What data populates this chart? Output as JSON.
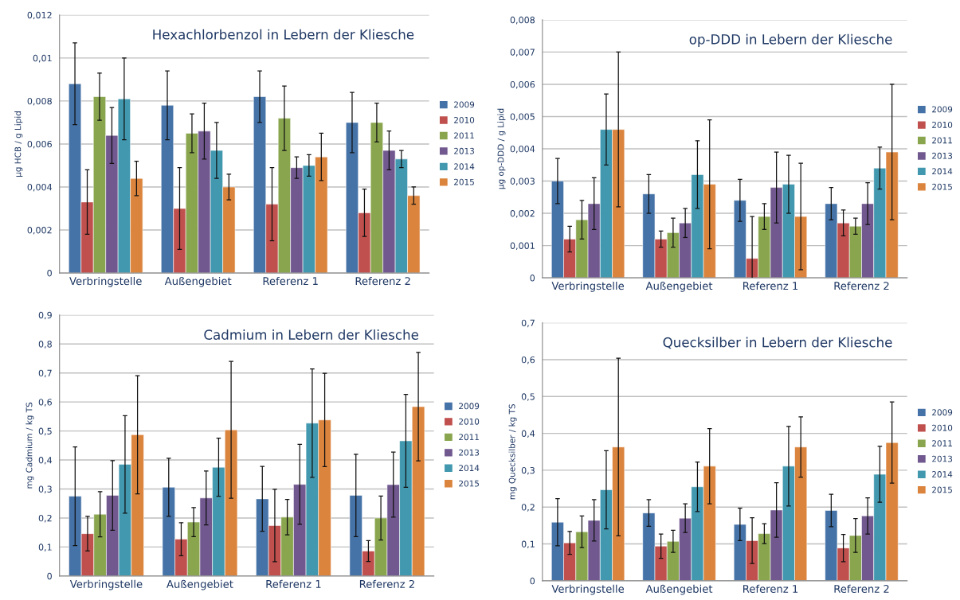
{
  "chart_data": [
    {
      "type": "bar",
      "title": "Hexachlorbenzol in Lebern der Kliesche",
      "ylabel": "µg HCB / g Lipid",
      "categories": [
        "Verbringstelle",
        "Außengebiet",
        "Referenz 1",
        "Referenz 2"
      ],
      "ylim": [
        0,
        0.012
      ],
      "yticks": [
        0,
        {
          "value": 0.002,
          "label": "0,002"
        },
        {
          "value": 0.004,
          "label": "0,004"
        },
        {
          "value": 0.006,
          "label": "0,006"
        },
        {
          "value": 0.008,
          "label": "0,008"
        },
        {
          "value": 0.01,
          "label": "0,01"
        },
        {
          "value": 0.012,
          "label": "0,012"
        }
      ],
      "grid": "y",
      "legend": "right",
      "series": [
        {
          "name": "2009",
          "color": "#4572a7",
          "values": [
            0.0088,
            0.0078,
            0.0082,
            0.007
          ],
          "errors": [
            0.0019,
            0.0016,
            0.0012,
            0.0014
          ]
        },
        {
          "name": "2010",
          "color": "#c0504d",
          "values": [
            0.0033,
            0.003,
            0.0032,
            0.0028
          ],
          "errors": [
            0.0015,
            0.0019,
            0.0017,
            0.0011
          ]
        },
        {
          "name": "2011",
          "color": "#89a54e",
          "values": [
            0.0082,
            0.0065,
            0.0072,
            0.007
          ],
          "errors": [
            0.0011,
            0.0009,
            0.0015,
            0.0009
          ]
        },
        {
          "name": "2013",
          "color": "#71588f",
          "values": [
            0.0064,
            0.0066,
            0.0049,
            0.0057
          ],
          "errors": [
            0.0013,
            0.0013,
            0.0005,
            0.0009
          ]
        },
        {
          "name": "2014",
          "color": "#4198af",
          "values": [
            0.0081,
            0.0057,
            0.005,
            0.0053
          ],
          "errors": [
            0.0019,
            0.0013,
            0.0005,
            0.0004
          ]
        },
        {
          "name": "2015",
          "color": "#db843d",
          "values": [
            0.0044,
            0.004,
            0.0054,
            0.0036
          ],
          "errors": [
            0.0008,
            0.0006,
            0.0011,
            0.0004
          ]
        }
      ]
    },
    {
      "type": "bar",
      "title": "op-DDD in Lebern der Kliesche",
      "ylabel": "µg op-DDD / g Lipid",
      "categories": [
        "Verbringstelle",
        "Außengebiet",
        "Referenz 1",
        "Referenz 2"
      ],
      "ylim": [
        0,
        0.008
      ],
      "yticks": [
        0,
        {
          "value": 0.001,
          "label": "0,001"
        },
        {
          "value": 0.002,
          "label": "0,002"
        },
        {
          "value": 0.003,
          "label": "0,003"
        },
        {
          "value": 0.004,
          "label": "0,004"
        },
        {
          "value": 0.005,
          "label": "0,005"
        },
        {
          "value": 0.006,
          "label": "0,006"
        },
        {
          "value": 0.007,
          "label": "0,007"
        },
        {
          "value": 0.008,
          "label": "0,008"
        }
      ],
      "grid": "y",
      "legend": "right",
      "series": [
        {
          "name": "2009",
          "color": "#4572a7",
          "values": [
            0.003,
            0.0026,
            0.0024,
            0.0023
          ],
          "errors": [
            0.0007,
            0.0006,
            0.00065,
            0.0005
          ]
        },
        {
          "name": "2010",
          "color": "#c0504d",
          "values": [
            0.0012,
            0.0012,
            0.0006,
            0.0017
          ],
          "errors": [
            0.0004,
            0.00025,
            0.0013,
            0.0004
          ]
        },
        {
          "name": "2011",
          "color": "#89a54e",
          "values": [
            0.0018,
            0.0014,
            0.0019,
            0.0016
          ],
          "errors": [
            0.0006,
            0.00045,
            0.0004,
            0.00025
          ]
        },
        {
          "name": "2013",
          "color": "#71588f",
          "values": [
            0.0023,
            0.0017,
            0.0028,
            0.0023
          ],
          "errors": [
            0.0008,
            0.00045,
            0.0011,
            0.00065
          ]
        },
        {
          "name": "2014",
          "color": "#4198af",
          "values": [
            0.0046,
            0.0032,
            0.0029,
            0.0034
          ],
          "errors": [
            0.0011,
            0.00105,
            0.0009,
            0.00065
          ]
        },
        {
          "name": "2015",
          "color": "#db843d",
          "values": [
            0.0046,
            0.0029,
            0.0019,
            0.0039
          ],
          "errors": [
            0.0024,
            0.002,
            0.00165,
            0.0021
          ]
        }
      ]
    },
    {
      "type": "bar",
      "title": "Cadmium in Lebern der Kliesche",
      "ylabel": "mg Cadmium / kg TS",
      "categories": [
        "Verbringstelle",
        "Außengebiet",
        "Referenz 1",
        "Referenz 2"
      ],
      "ylim": [
        0,
        0.9
      ],
      "yticks": [
        0,
        {
          "value": 0.1,
          "label": "0,1"
        },
        {
          "value": 0.2,
          "label": "0,2"
        },
        {
          "value": 0.3,
          "label": "0,3"
        },
        {
          "value": 0.4,
          "label": "0,4"
        },
        {
          "value": 0.5,
          "label": "0,5"
        },
        {
          "value": 0.6,
          "label": "0,6"
        },
        {
          "value": 0.7,
          "label": "0,7"
        },
        {
          "value": 0.8,
          "label": "0,8"
        },
        {
          "value": 0.9,
          "label": "0,9"
        }
      ],
      "grid": "y",
      "legend": "right",
      "series": [
        {
          "name": "2009",
          "color": "#4572a7",
          "values": [
            0.275,
            0.306,
            0.266,
            0.278
          ],
          "errors": [
            0.17,
            0.1,
            0.112,
            0.142
          ]
        },
        {
          "name": "2010",
          "color": "#c0504d",
          "values": [
            0.146,
            0.127,
            0.174,
            0.086
          ],
          "errors": [
            0.06,
            0.057,
            0.125,
            0.036
          ]
        },
        {
          "name": "2011",
          "color": "#89a54e",
          "values": [
            0.213,
            0.186,
            0.203,
            0.2
          ],
          "errors": [
            0.078,
            0.05,
            0.061,
            0.076
          ]
        },
        {
          "name": "2013",
          "color": "#71588f",
          "values": [
            0.278,
            0.269,
            0.316,
            0.315
          ],
          "errors": [
            0.12,
            0.093,
            0.138,
            0.112
          ]
        },
        {
          "name": "2014",
          "color": "#4198af",
          "values": [
            0.385,
            0.375,
            0.527,
            0.466
          ],
          "errors": [
            0.168,
            0.1,
            0.187,
            0.16
          ]
        },
        {
          "name": "2015",
          "color": "#db843d",
          "values": [
            0.487,
            0.504,
            0.538,
            0.584
          ],
          "errors": [
            0.204,
            0.236,
            0.161,
            0.187
          ]
        }
      ]
    },
    {
      "type": "bar",
      "title": "Quecksilber in Lebern der Kliesche",
      "ylabel": "mg Quecksilber / kg TS",
      "categories": [
        "Verbringstelle",
        "Außengebiet",
        "Referenz 1",
        "Referenz 2"
      ],
      "ylim": [
        0,
        0.7
      ],
      "yticks": [
        0,
        {
          "value": 0.1,
          "label": "0,1"
        },
        {
          "value": 0.2,
          "label": "0,2"
        },
        {
          "value": 0.3,
          "label": "0,3"
        },
        {
          "value": 0.4,
          "label": "0,4"
        },
        {
          "value": 0.5,
          "label": "0,5"
        },
        {
          "value": 0.6,
          "label": "0,6"
        },
        {
          "value": 0.7,
          "label": "0,7"
        }
      ],
      "grid": "y",
      "legend": "right",
      "series": [
        {
          "name": "2009",
          "color": "#4572a7",
          "values": [
            0.159,
            0.184,
            0.153,
            0.191
          ],
          "errors": [
            0.064,
            0.036,
            0.044,
            0.044
          ]
        },
        {
          "name": "2010",
          "color": "#c0504d",
          "values": [
            0.103,
            0.094,
            0.109,
            0.089
          ],
          "errors": [
            0.031,
            0.033,
            0.062,
            0.037
          ]
        },
        {
          "name": "2011",
          "color": "#89a54e",
          "values": [
            0.133,
            0.107,
            0.128,
            0.123
          ],
          "errors": [
            0.043,
            0.03,
            0.027,
            0.046
          ]
        },
        {
          "name": "2013",
          "color": "#71588f",
          "values": [
            0.164,
            0.17,
            0.192,
            0.176
          ],
          "errors": [
            0.056,
            0.039,
            0.074,
            0.049
          ]
        },
        {
          "name": "2014",
          "color": "#4198af",
          "values": [
            0.247,
            0.255,
            0.311,
            0.289
          ],
          "errors": [
            0.106,
            0.067,
            0.108,
            0.076
          ]
        },
        {
          "name": "2015",
          "color": "#db843d",
          "values": [
            0.363,
            0.311,
            0.363,
            0.375
          ],
          "errors": [
            0.241,
            0.102,
            0.082,
            0.11
          ]
        }
      ]
    }
  ]
}
